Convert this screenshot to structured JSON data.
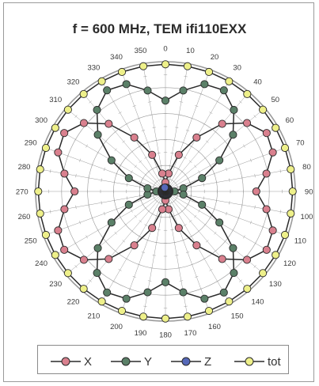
{
  "chart_data": {
    "type": "polar",
    "title": "f = 600 MHz, TEM ifi110EXX",
    "angle_ticks": [
      "0",
      "10",
      "20",
      "30",
      "40",
      "50",
      "60",
      "70",
      "80",
      "90",
      "100",
      "110",
      "120",
      "130",
      "140",
      "150",
      "160",
      "170",
      "180",
      "190",
      "200",
      "210",
      "220",
      "230",
      "240",
      "250",
      "260",
      "270",
      "280",
      "290",
      "300",
      "310",
      "320",
      "330",
      "340",
      "350"
    ],
    "radial_range": [
      0,
      1
    ],
    "grid": true,
    "legend_placement": "bottom",
    "colors": {
      "X": "#d9808e",
      "Y": "#5b8068",
      "Z": "#5568b8",
      "tot": "#eef08a",
      "line": "#2a2a2a",
      "grid": "#9a9a9a"
    },
    "series": [
      {
        "name": "X",
        "angles_deg": [
          0,
          10,
          20,
          30,
          40,
          50,
          60,
          70,
          80,
          90,
          100,
          110,
          120,
          130,
          140,
          150,
          160,
          170,
          180,
          190,
          200,
          210,
          220,
          230,
          240,
          250,
          260,
          270,
          280,
          290,
          300,
          310,
          320,
          330,
          340,
          350
        ],
        "values": [
          0.07,
          0.14,
          0.3,
          0.48,
          0.68,
          0.82,
          0.9,
          0.88,
          0.79,
          0.7,
          0.79,
          0.88,
          0.9,
          0.82,
          0.68,
          0.48,
          0.3,
          0.14,
          0.07,
          0.14,
          0.3,
          0.48,
          0.68,
          0.82,
          0.9,
          0.88,
          0.79,
          0.7,
          0.79,
          0.88,
          0.9,
          0.82,
          0.68,
          0.48,
          0.3,
          0.14
        ]
      },
      {
        "name": "Y",
        "angles_deg": [
          0,
          10,
          20,
          30,
          40,
          50,
          60,
          70,
          80,
          90,
          100,
          110,
          120,
          130,
          140,
          150,
          160,
          170,
          180,
          190,
          200,
          210,
          220,
          230,
          240,
          250,
          260,
          270,
          280,
          290,
          300,
          310,
          320,
          330,
          340,
          350
        ],
        "values": [
          0.7,
          0.79,
          0.88,
          0.9,
          0.82,
          0.68,
          0.48,
          0.3,
          0.14,
          0.07,
          0.14,
          0.3,
          0.48,
          0.68,
          0.82,
          0.9,
          0.88,
          0.79,
          0.7,
          0.79,
          0.88,
          0.9,
          0.82,
          0.68,
          0.48,
          0.3,
          0.14,
          0.07,
          0.14,
          0.3,
          0.48,
          0.68,
          0.82,
          0.9,
          0.88,
          0.79
        ]
      },
      {
        "name": "Z",
        "angles_deg": [
          0,
          10,
          20,
          30,
          40,
          50,
          60,
          70,
          80,
          90,
          100,
          110,
          120,
          130,
          140,
          150,
          160,
          170,
          180,
          190,
          200,
          210,
          220,
          230,
          240,
          250,
          260,
          270,
          280,
          290,
          300,
          310,
          320,
          330,
          340,
          350
        ],
        "values": [
          0.03,
          0.03,
          0.03,
          0.03,
          0.03,
          0.03,
          0.03,
          0.03,
          0.03,
          0.03,
          0.03,
          0.03,
          0.03,
          0.03,
          0.03,
          0.03,
          0.03,
          0.03,
          0.03,
          0.03,
          0.03,
          0.03,
          0.03,
          0.03,
          0.03,
          0.03,
          0.03,
          0.03,
          0.03,
          0.03,
          0.03,
          0.03,
          0.03,
          0.03,
          0.03,
          0.03
        ]
      },
      {
        "name": "tot",
        "angles_deg": [
          0,
          10,
          20,
          30,
          40,
          50,
          60,
          70,
          80,
          90,
          100,
          110,
          120,
          130,
          140,
          150,
          160,
          170,
          180,
          190,
          200,
          210,
          220,
          230,
          240,
          250,
          260,
          270,
          280,
          290,
          300,
          310,
          320,
          330,
          340,
          350
        ],
        "values": [
          0.98,
          0.98,
          0.98,
          0.98,
          0.98,
          0.98,
          0.98,
          0.98,
          0.98,
          0.98,
          0.98,
          0.98,
          0.98,
          0.98,
          0.98,
          0.98,
          0.98,
          0.98,
          0.98,
          0.98,
          0.98,
          0.98,
          0.98,
          0.98,
          0.98,
          0.98,
          0.98,
          0.98,
          0.98,
          0.98,
          0.98,
          0.98,
          0.98,
          0.98,
          0.98,
          0.98
        ]
      }
    ]
  }
}
